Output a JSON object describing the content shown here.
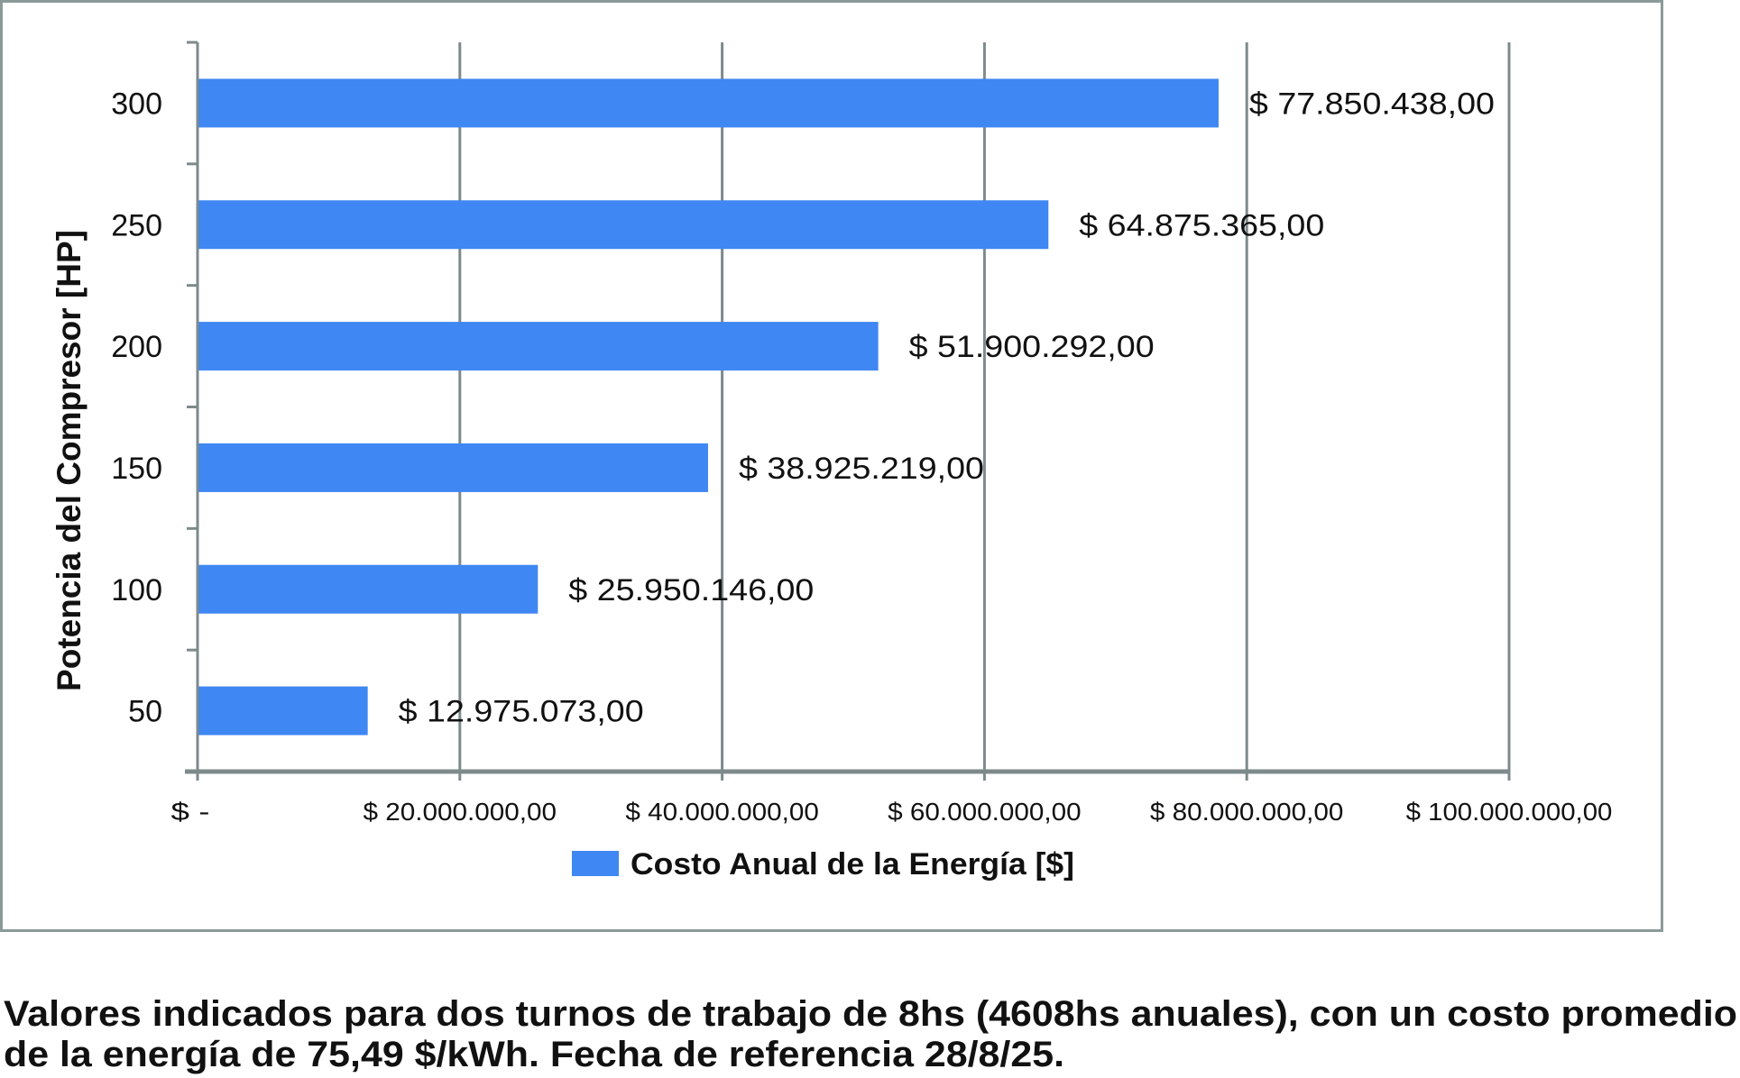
{
  "chart_data": {
    "type": "bar",
    "orientation": "horizontal",
    "categories": [
      "300",
      "250",
      "200",
      "150",
      "100",
      "50"
    ],
    "series": [
      {
        "name": "Costo Anual de la Energía [$]",
        "values": [
          77850438,
          64875365,
          51900292,
          38925219,
          25950146,
          12975073
        ],
        "data_labels": [
          "$ 77.850.438,00",
          "$ 64.875.365,00",
          "$ 51.900.292,00",
          "$ 38.925.219,00",
          "$ 25.950.146,00",
          "$ 12.975.073,00"
        ],
        "color": "#3f87f2"
      }
    ],
    "ylabel": "Potencia del Compresor [HP]",
    "xlabel": "",
    "xlim": [
      0,
      100000000
    ],
    "x_tick_labels": [
      "$ -",
      "$ 20.000.000,00",
      "$ 40.000.000,00",
      "$ 60.000.000,00",
      "$ 80.000.000,00",
      "$ 100.000.000,00"
    ],
    "x_ticks": [
      0,
      20000000,
      40000000,
      60000000,
      80000000,
      100000000
    ],
    "grid": "vertical",
    "legend": "bottom",
    "gridline_color": "#7d8a8c"
  },
  "caption": {
    "line1": "Valores indicados para dos turnos de trabajo de 8hs (4608hs anuales), con un costo promedio",
    "line2": "de la energía de 75,49 $/kWh. Fecha de referencia 28/8/25."
  }
}
